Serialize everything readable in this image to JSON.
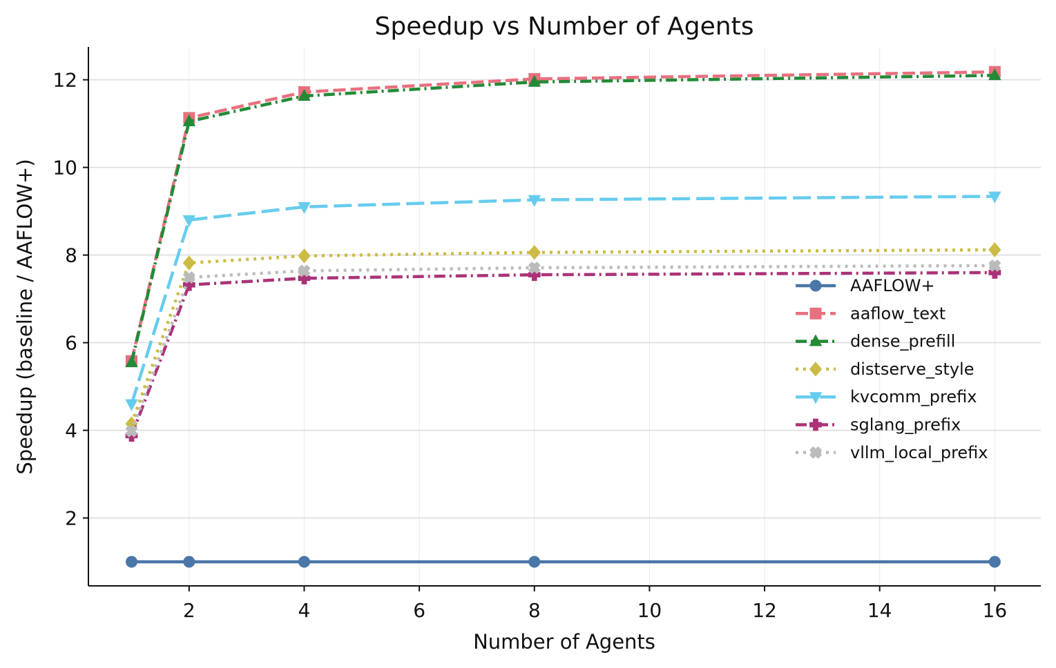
{
  "chart_data": {
    "type": "line",
    "title": "Speedup vs Number of Agents",
    "xlabel": "Number of Agents",
    "ylabel": "Speedup (baseline / AAFLOW+)",
    "x": [
      1,
      2,
      4,
      8,
      16
    ],
    "xlim": [
      0.25,
      16.8
    ],
    "ylim": [
      0.45,
      12.75
    ],
    "xticks": [
      2,
      4,
      6,
      8,
      10,
      12,
      14,
      16
    ],
    "yticks": [
      2,
      4,
      6,
      8,
      10,
      12
    ],
    "grid": true,
    "legend_position": "center-right",
    "series": [
      {
        "name": "AAFLOW+",
        "values": [
          1.0,
          1.0,
          1.0,
          1.0,
          1.0
        ],
        "color": "#4a76a8",
        "dash": "solid",
        "marker": "circle"
      },
      {
        "name": "aaflow_text",
        "values": [
          5.58,
          11.13,
          11.72,
          12.02,
          12.18
        ],
        "color": "#e8707f",
        "dash": "dashed",
        "marker": "square"
      },
      {
        "name": "dense_prefill",
        "values": [
          5.55,
          11.05,
          11.63,
          11.95,
          12.1
        ],
        "color": "#238a36",
        "dash": "dashdot",
        "marker": "triangle-up"
      },
      {
        "name": "distserve_style",
        "values": [
          4.15,
          7.82,
          7.98,
          8.06,
          8.12
        ],
        "color": "#ccbb44",
        "dash": "dotted",
        "marker": "diamond"
      },
      {
        "name": "kvcomm_prefix",
        "values": [
          4.6,
          8.8,
          9.1,
          9.26,
          9.34
        ],
        "color": "#66ccee",
        "dash": "longdash",
        "marker": "triangle-down"
      },
      {
        "name": "sglang_prefix",
        "values": [
          3.88,
          7.32,
          7.47,
          7.55,
          7.6
        ],
        "color": "#aa3377",
        "dash": "dashdot",
        "marker": "plus"
      },
      {
        "name": "vllm_local_prefix",
        "values": [
          3.98,
          7.49,
          7.64,
          7.71,
          7.76
        ],
        "color": "#bbbbbb",
        "dash": "dotted",
        "marker": "x"
      }
    ]
  }
}
